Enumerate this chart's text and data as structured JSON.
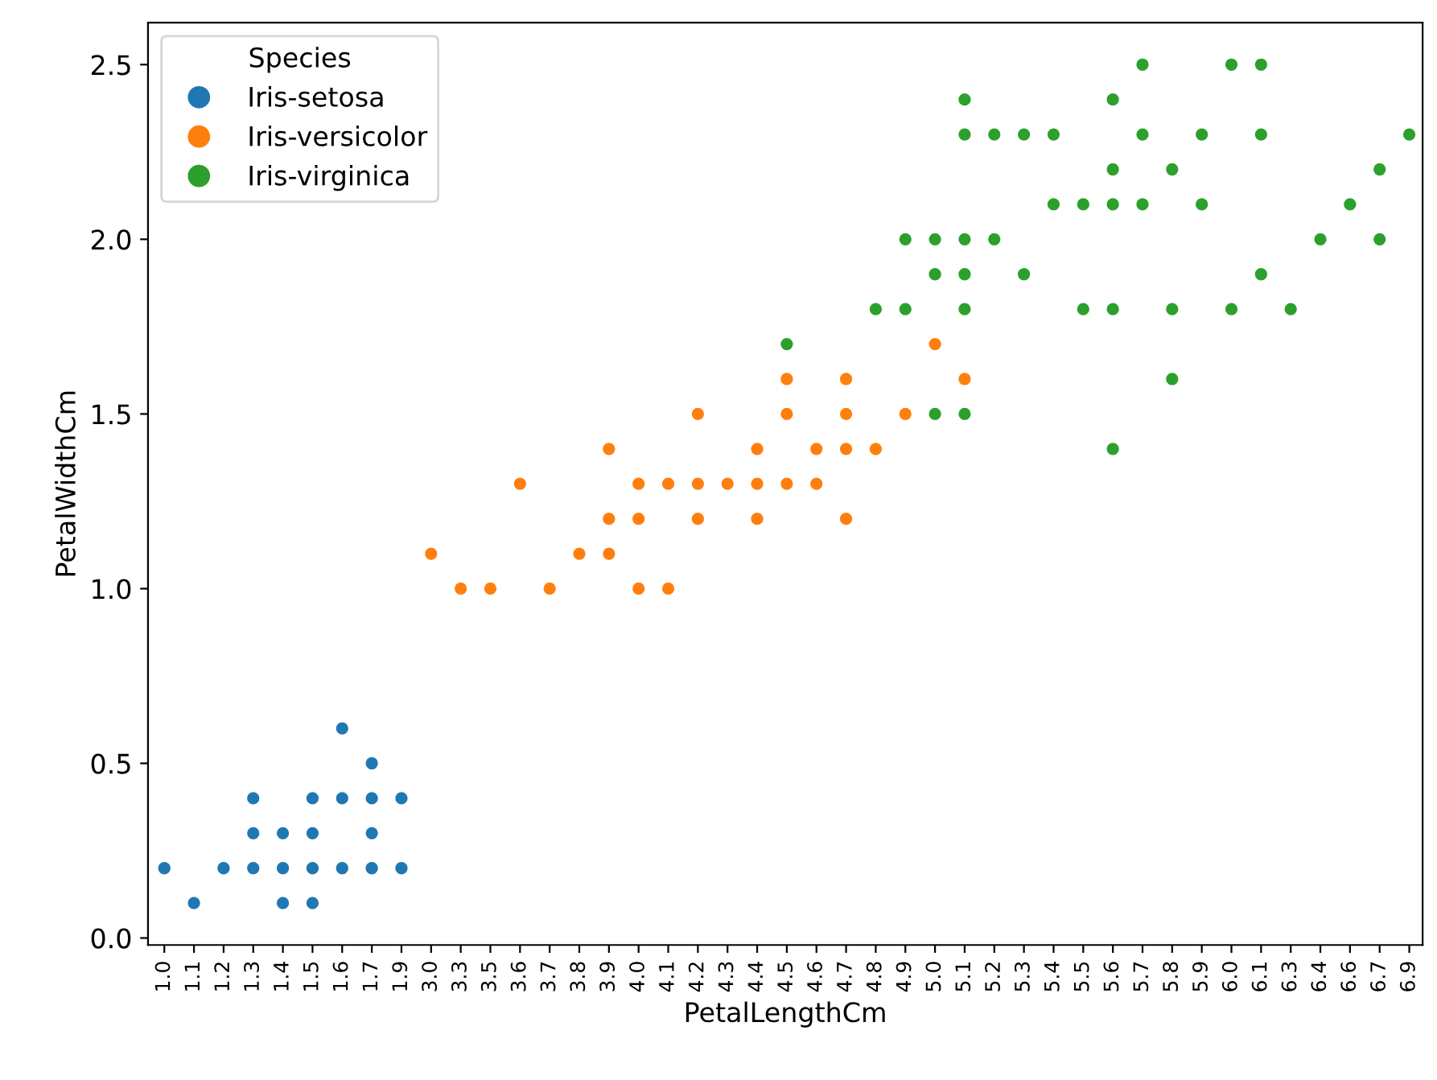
{
  "chart_data": {
    "type": "scatter",
    "xlabel": "PetalLengthCm",
    "ylabel": "PetalWidthCm",
    "legend_title": "Species",
    "legend": "top left",
    "marker": "circle",
    "grid": false,
    "categories": [
      "1.0",
      "1.1",
      "1.2",
      "1.3",
      "1.4",
      "1.5",
      "1.6",
      "1.7",
      "1.9",
      "3.0",
      "3.3",
      "3.5",
      "3.6",
      "3.7",
      "3.8",
      "3.9",
      "4.0",
      "4.1",
      "4.2",
      "4.3",
      "4.4",
      "4.5",
      "4.6",
      "4.7",
      "4.8",
      "4.9",
      "5.0",
      "5.1",
      "5.2",
      "5.3",
      "5.4",
      "5.5",
      "5.6",
      "5.7",
      "5.8",
      "5.9",
      "6.0",
      "6.1",
      "6.3",
      "6.4",
      "6.6",
      "6.7",
      "6.9"
    ],
    "ylim": [
      -0.02,
      2.62
    ],
    "yticks": [
      {
        "value": 0,
        "label": "0.0"
      },
      {
        "value": 0.5,
        "label": "0.5"
      },
      {
        "value": 1,
        "label": "1.0"
      },
      {
        "value": 1.5,
        "label": "1.5"
      },
      {
        "value": 2,
        "label": "2.0"
      },
      {
        "value": 2.5,
        "label": "2.5"
      }
    ],
    "series": [
      {
        "name": "Iris-setosa",
        "color": "#1f77b4",
        "x": [
          "1.0",
          "1.1",
          "1.2",
          "1.3",
          "1.3",
          "1.3",
          "1.4",
          "1.4",
          "1.4",
          "1.5",
          "1.5",
          "1.5",
          "1.5",
          "1.6",
          "1.6",
          "1.6",
          "1.7",
          "1.7",
          "1.7",
          "1.7",
          "1.9",
          "1.9"
        ],
        "values": [
          0.2,
          0.1,
          0.2,
          0.2,
          0.3,
          0.4,
          0.1,
          0.2,
          0.3,
          0.1,
          0.2,
          0.3,
          0.4,
          0.2,
          0.4,
          0.6,
          0.2,
          0.3,
          0.4,
          0.5,
          0.2,
          0.4
        ]
      },
      {
        "name": "Iris-versicolor",
        "color": "#ff7f0e",
        "x": [
          "3.0",
          "3.3",
          "3.5",
          "3.6",
          "3.7",
          "3.8",
          "3.9",
          "3.9",
          "3.9",
          "4.0",
          "4.0",
          "4.0",
          "4.1",
          "4.1",
          "4.2",
          "4.2",
          "4.2",
          "4.3",
          "4.4",
          "4.4",
          "4.4",
          "4.5",
          "4.5",
          "4.5",
          "4.6",
          "4.6",
          "4.7",
          "4.7",
          "4.7",
          "4.7",
          "4.8",
          "4.9",
          "5.0",
          "5.1"
        ],
        "values": [
          1.1,
          1.0,
          1.0,
          1.3,
          1.0,
          1.1,
          1.1,
          1.2,
          1.4,
          1.0,
          1.2,
          1.3,
          1.0,
          1.3,
          1.2,
          1.3,
          1.5,
          1.3,
          1.2,
          1.3,
          1.4,
          1.3,
          1.5,
          1.6,
          1.3,
          1.4,
          1.2,
          1.4,
          1.5,
          1.6,
          1.4,
          1.5,
          1.7,
          1.6
        ]
      },
      {
        "name": "Iris-virginica",
        "color": "#2ca02c",
        "x": [
          "4.5",
          "4.8",
          "4.9",
          "4.9",
          "5.0",
          "5.0",
          "5.0",
          "5.1",
          "5.1",
          "5.1",
          "5.1",
          "5.1",
          "5.1",
          "5.2",
          "5.2",
          "5.3",
          "5.3",
          "5.4",
          "5.4",
          "5.5",
          "5.5",
          "5.6",
          "5.6",
          "5.6",
          "5.6",
          "5.6",
          "5.7",
          "5.7",
          "5.7",
          "5.8",
          "5.8",
          "5.8",
          "5.9",
          "5.9",
          "6.0",
          "6.0",
          "6.1",
          "6.1",
          "6.1",
          "6.3",
          "6.4",
          "6.6",
          "6.7",
          "6.7",
          "6.9"
        ],
        "values": [
          1.7,
          1.8,
          1.8,
          2.0,
          1.5,
          1.9,
          2.0,
          1.5,
          1.8,
          1.9,
          2.0,
          2.3,
          2.4,
          2.0,
          2.3,
          1.9,
          2.3,
          2.1,
          2.3,
          1.8,
          2.1,
          1.4,
          1.8,
          2.1,
          2.2,
          2.4,
          2.1,
          2.3,
          2.5,
          1.6,
          1.8,
          2.2,
          2.1,
          2.3,
          1.8,
          2.5,
          1.9,
          2.3,
          2.5,
          1.8,
          2.0,
          2.1,
          2.0,
          2.2,
          2.3
        ]
      }
    ]
  }
}
